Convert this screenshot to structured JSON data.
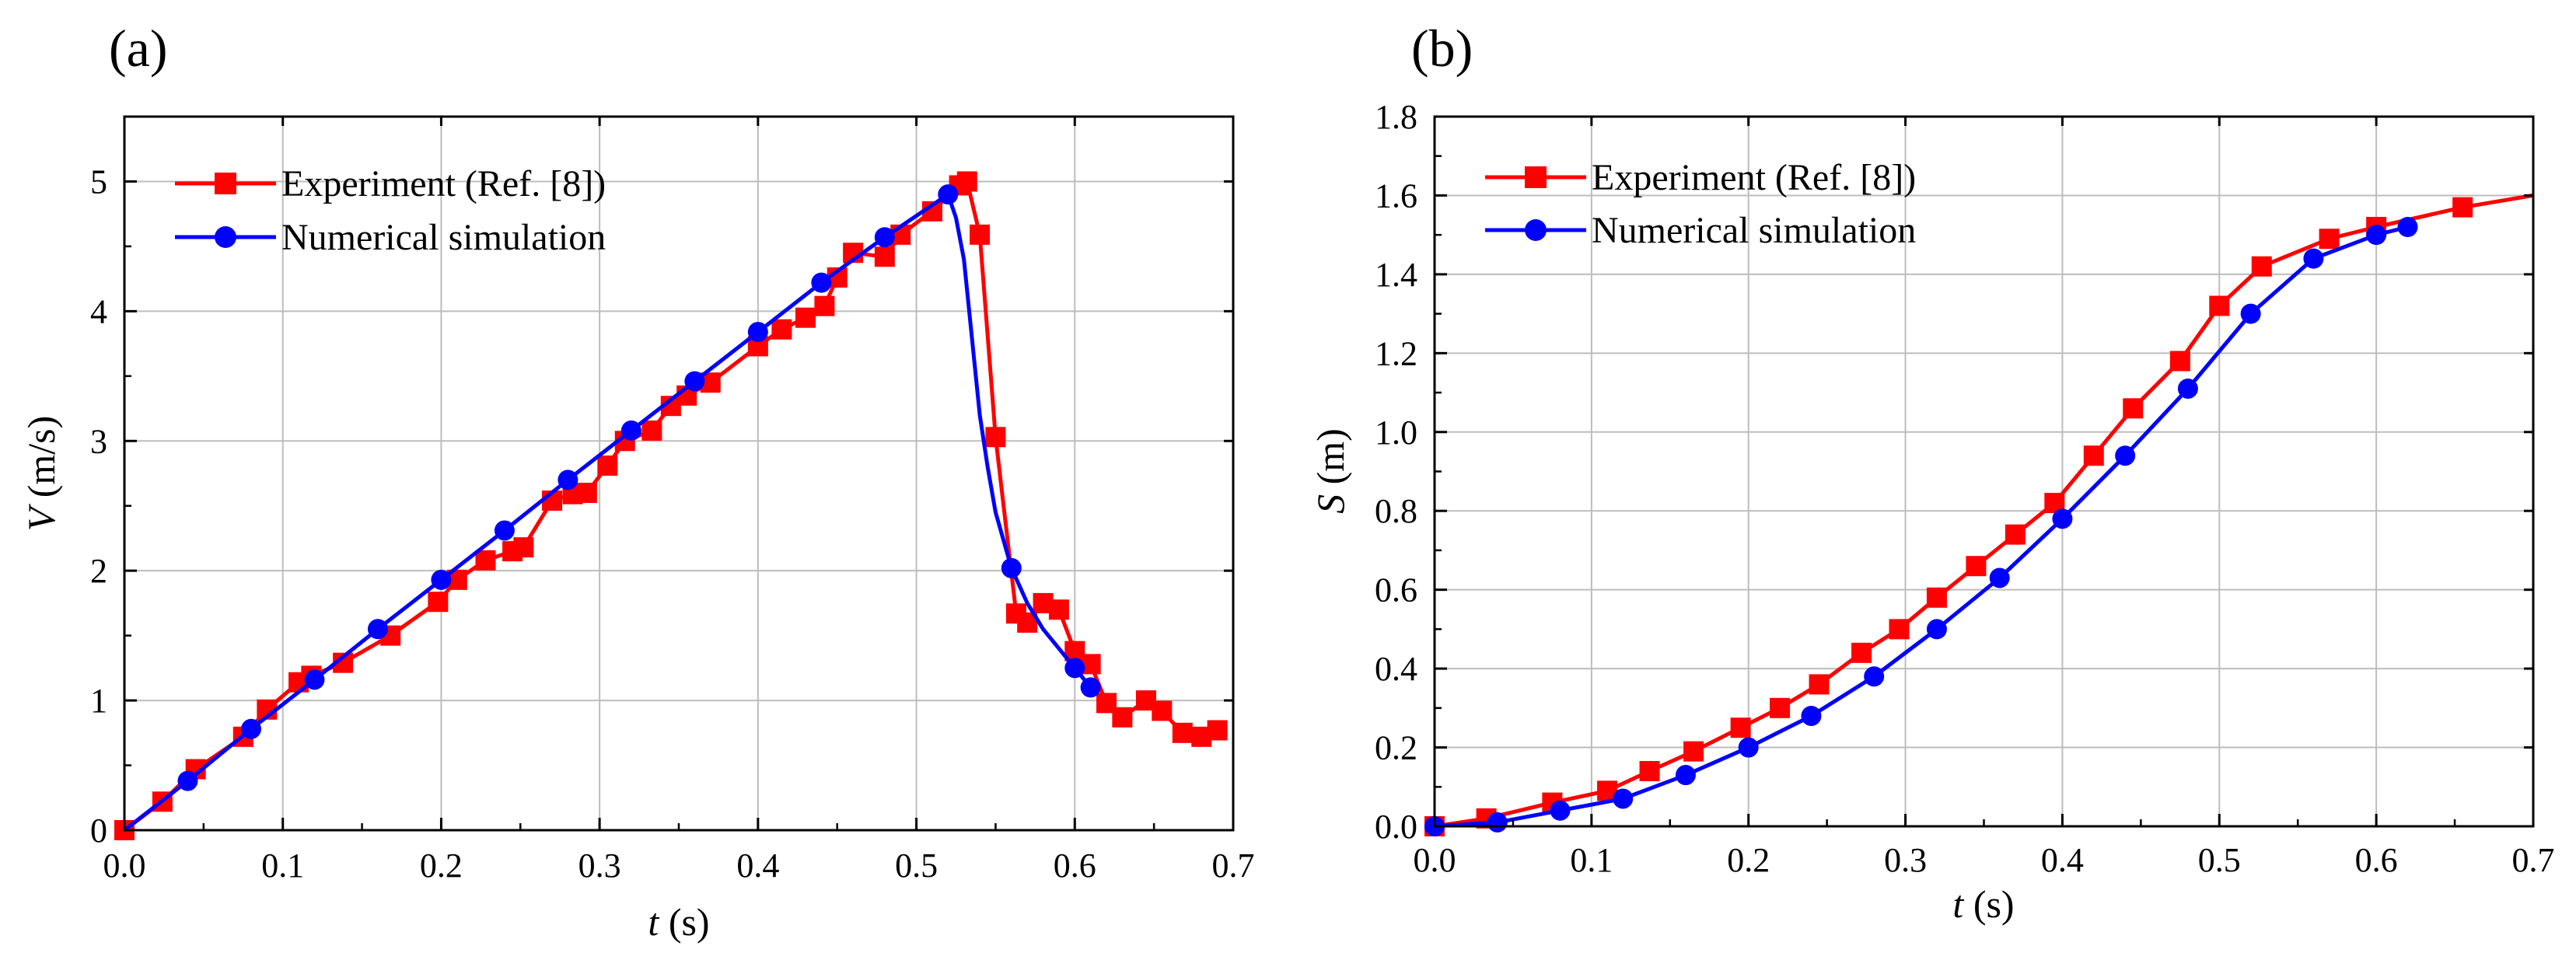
{
  "chart_data": [
    {
      "panel_label": "(a)",
      "type": "line",
      "xlabel_var": "t",
      "xlabel_unit": " (s)",
      "ylabel_var": "V",
      "ylabel_unit": " (m/s)",
      "xlim": [
        0,
        0.7
      ],
      "ylim": [
        0,
        5.5
      ],
      "xticks": [
        0.0,
        0.1,
        0.2,
        0.3,
        0.4,
        0.5,
        0.6,
        0.7
      ],
      "xtick_labels": [
        "0.0",
        "0.1",
        "0.2",
        "0.3",
        "0.4",
        "0.5",
        "0.6",
        "0.7"
      ],
      "yticks": [
        0,
        1,
        2,
        3,
        4,
        5
      ],
      "ytick_labels": [
        "0",
        "1",
        "2",
        "3",
        "4",
        "5"
      ],
      "grid": true,
      "legend_position": "top-left",
      "series": [
        {
          "name": "Experiment (Ref. [8])",
          "color": "#ff0000",
          "marker": "square",
          "x": [
            0.0,
            0.024,
            0.045,
            0.075,
            0.09,
            0.11,
            0.118,
            0.138,
            0.168,
            0.198,
            0.21,
            0.228,
            0.245,
            0.252,
            0.27,
            0.283,
            0.292,
            0.305,
            0.316,
            0.333,
            0.345,
            0.355,
            0.37,
            0.4,
            0.415,
            0.43,
            0.442,
            0.45,
            0.46,
            0.48,
            0.49,
            0.51,
            0.527,
            0.532,
            0.54,
            0.55,
            0.563,
            0.57,
            0.58,
            0.59,
            0.6,
            0.61,
            0.62,
            0.63,
            0.645,
            0.655,
            0.668,
            0.68,
            0.69
          ],
          "y": [
            0.0,
            0.22,
            0.47,
            0.72,
            0.93,
            1.14,
            1.19,
            1.29,
            1.5,
            1.76,
            1.93,
            2.08,
            2.15,
            2.18,
            2.54,
            2.59,
            2.6,
            2.81,
            3.0,
            3.08,
            3.27,
            3.35,
            3.45,
            3.73,
            3.86,
            3.95,
            4.04,
            4.26,
            4.45,
            4.42,
            4.59,
            4.77,
            4.97,
            5.0,
            4.59,
            3.03,
            1.67,
            1.6,
            1.75,
            1.7,
            1.38,
            1.28,
            0.98,
            0.87,
            1.0,
            0.92,
            0.75,
            0.72,
            0.77
          ]
        },
        {
          "name": "Numerical simulation",
          "color": "#0000ff",
          "marker": "circle",
          "x": [
            0.0,
            0.04,
            0.08,
            0.12,
            0.16,
            0.2,
            0.24,
            0.28,
            0.32,
            0.36,
            0.4,
            0.44,
            0.48,
            0.52,
            0.525,
            0.53,
            0.535,
            0.54,
            0.545,
            0.55,
            0.56,
            0.57,
            0.58,
            0.59,
            0.6,
            0.61
          ],
          "y": [
            0.0,
            0.38,
            0.78,
            1.16,
            1.55,
            1.93,
            2.31,
            2.7,
            3.08,
            3.46,
            3.84,
            4.22,
            4.57,
            4.9,
            4.72,
            4.4,
            3.8,
            3.2,
            2.8,
            2.45,
            2.02,
            1.75,
            1.55,
            1.4,
            1.25,
            1.1
          ],
          "marker_x": [
            0.04,
            0.08,
            0.12,
            0.16,
            0.2,
            0.24,
            0.28,
            0.32,
            0.36,
            0.4,
            0.44,
            0.48,
            0.52,
            0.56,
            0.6,
            0.61
          ],
          "marker_y": [
            0.38,
            0.78,
            1.16,
            1.55,
            1.93,
            2.31,
            2.7,
            3.08,
            3.46,
            3.84,
            4.22,
            4.57,
            4.9,
            2.02,
            1.25,
            1.1
          ]
        }
      ]
    },
    {
      "panel_label": "(b)",
      "type": "line",
      "xlabel_var": "t",
      "xlabel_unit": " (s)",
      "ylabel_var": "S",
      "ylabel_unit": " (m)",
      "xlim": [
        0,
        0.7
      ],
      "ylim": [
        0,
        1.8
      ],
      "xticks": [
        0.0,
        0.1,
        0.2,
        0.3,
        0.4,
        0.5,
        0.6,
        0.7
      ],
      "xtick_labels": [
        "0.0",
        "0.1",
        "0.2",
        "0.3",
        "0.4",
        "0.5",
        "0.6",
        "0.7"
      ],
      "yticks": [
        0.0,
        0.2,
        0.4,
        0.6,
        0.8,
        1.0,
        1.2,
        1.4,
        1.6,
        1.8
      ],
      "ytick_labels": [
        "0.0",
        "0.2",
        "0.4",
        "0.6",
        "0.8",
        "1.0",
        "1.2",
        "1.4",
        "1.6",
        "1.8"
      ],
      "grid": true,
      "legend_position": "top-left",
      "series": [
        {
          "name": "Experiment (Ref. [8])",
          "color": "#ff0000",
          "marker": "square",
          "x": [
            0.0,
            0.033,
            0.075,
            0.11,
            0.137,
            0.165,
            0.195,
            0.22,
            0.245,
            0.272,
            0.296,
            0.32,
            0.345,
            0.37,
            0.395,
            0.42,
            0.445,
            0.475,
            0.5,
            0.527,
            0.57,
            0.6,
            0.655,
            0.7
          ],
          "y": [
            0.0,
            0.02,
            0.06,
            0.09,
            0.14,
            0.19,
            0.25,
            0.3,
            0.36,
            0.44,
            0.5,
            0.58,
            0.66,
            0.74,
            0.82,
            0.94,
            1.06,
            1.18,
            1.32,
            1.42,
            1.49,
            1.52,
            1.57,
            1.6
          ],
          "marker_x": [
            0.0,
            0.033,
            0.075,
            0.11,
            0.137,
            0.165,
            0.195,
            0.22,
            0.245,
            0.272,
            0.296,
            0.32,
            0.345,
            0.37,
            0.395,
            0.42,
            0.445,
            0.475,
            0.5,
            0.527,
            0.57,
            0.6,
            0.655
          ],
          "marker_y": [
            0.0,
            0.02,
            0.06,
            0.09,
            0.14,
            0.19,
            0.25,
            0.3,
            0.36,
            0.44,
            0.5,
            0.58,
            0.66,
            0.74,
            0.82,
            0.94,
            1.06,
            1.18,
            1.32,
            1.42,
            1.49,
            1.52,
            1.57
          ]
        },
        {
          "name": "Numerical simulation",
          "color": "#0000ff",
          "marker": "circle",
          "x": [
            0.0,
            0.04,
            0.08,
            0.12,
            0.16,
            0.2,
            0.24,
            0.28,
            0.32,
            0.36,
            0.4,
            0.44,
            0.48,
            0.52,
            0.56,
            0.6,
            0.62
          ],
          "y": [
            0.0,
            0.01,
            0.04,
            0.07,
            0.13,
            0.2,
            0.28,
            0.38,
            0.5,
            0.63,
            0.78,
            0.94,
            1.11,
            1.3,
            1.44,
            1.5,
            1.52
          ]
        }
      ]
    }
  ]
}
